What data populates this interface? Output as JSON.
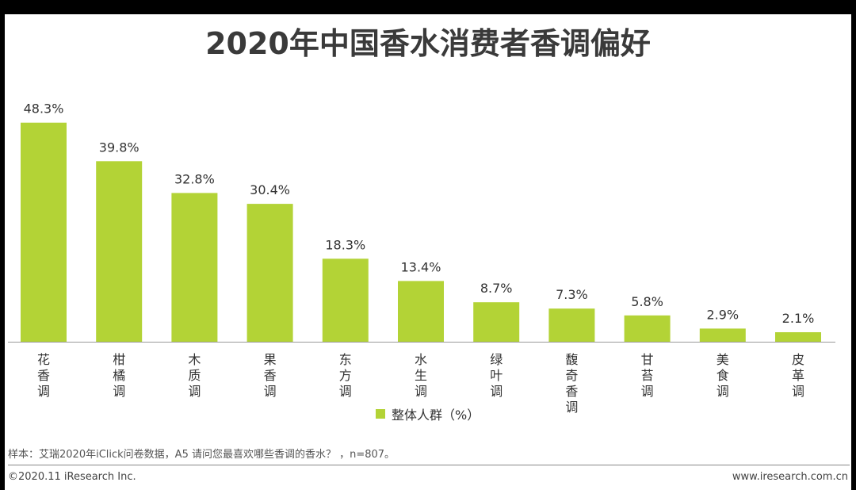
{
  "title": "2020年中国香水消费者香调偏好",
  "colors": {
    "bar": "#b3d336",
    "axis": "#999999",
    "text": "#333333"
  },
  "chart_data": {
    "type": "bar",
    "categories": [
      "花香调",
      "柑橘调",
      "木质调",
      "果香调",
      "东方调",
      "水生调",
      "绿叶调",
      "馥奇香调",
      "甘苔调",
      "美食调",
      "皮革调"
    ],
    "series": [
      {
        "name": "整体人群（%）",
        "values": [
          48.3,
          39.8,
          32.8,
          30.4,
          18.3,
          13.4,
          8.7,
          7.3,
          5.8,
          2.9,
          2.1
        ]
      }
    ],
    "data_labels": [
      "48.3%",
      "39.8%",
      "32.8%",
      "30.4%",
      "18.3%",
      "13.4%",
      "8.7%",
      "7.3%",
      "5.8%",
      "2.9%",
      "2.1%"
    ],
    "ylim": [
      0,
      50
    ],
    "grid": false,
    "legend": "bottom"
  },
  "legend_label": "整体人群（%）",
  "source_note": "样本：艾瑞2020年iClick问卷数据，A5 请问您最喜欢哪些香调的香水？ ，n=807。",
  "copyright": "©2020.11 iResearch Inc.",
  "website": "www.iresearch.com.cn"
}
